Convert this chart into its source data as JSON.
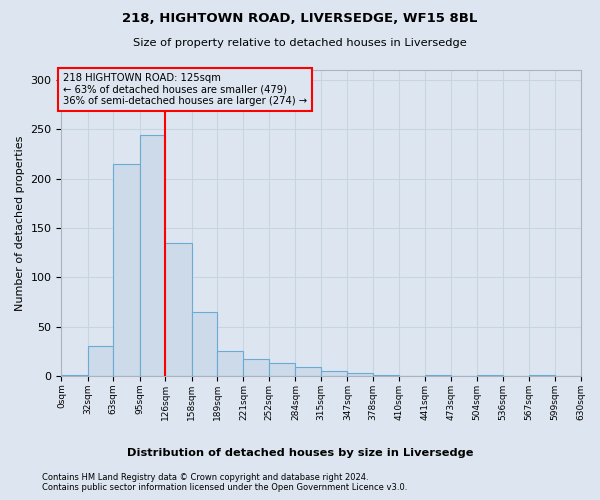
{
  "title1": "218, HIGHTOWN ROAD, LIVERSEDGE, WF15 8BL",
  "title2": "Size of property relative to detached houses in Liversedge",
  "xlabel": "Distribution of detached houses by size in Liversedge",
  "ylabel": "Number of detached properties",
  "bin_edges": [
    0,
    32,
    63,
    95,
    126,
    158,
    189,
    221,
    252,
    284,
    315,
    347,
    378,
    410,
    441,
    473,
    504,
    536,
    567,
    599,
    630
  ],
  "bar_heights": [
    1,
    30,
    215,
    244,
    135,
    65,
    25,
    17,
    13,
    9,
    5,
    3,
    1,
    0,
    1,
    0,
    1,
    0,
    1,
    0
  ],
  "bar_color": "#ccdaea",
  "bar_edge_color": "#6aaad4",
  "grid_color": "#c8d4e0",
  "background_color": "#dde6f0",
  "property_line_x": 126,
  "annotation_title": "218 HIGHTOWN ROAD: 125sqm",
  "annotation_line1": "← 63% of detached houses are smaller (479)",
  "annotation_line2": "36% of semi-detached houses are larger (274) →",
  "annotation_box_color": "red",
  "property_line_color": "red",
  "ylim": [
    0,
    310
  ],
  "yticks": [
    0,
    50,
    100,
    150,
    200,
    250,
    300
  ],
  "footer1": "Contains HM Land Registry data © Crown copyright and database right 2024.",
  "footer2": "Contains public sector information licensed under the Open Government Licence v3.0."
}
